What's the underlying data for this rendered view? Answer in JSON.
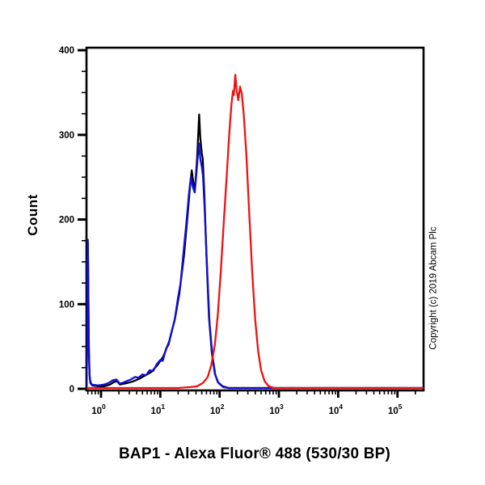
{
  "page": {
    "background": "#ffffff"
  },
  "chart_data": {
    "type": "line",
    "subtype": "flow-cytometry-histogram",
    "title": "BAP1 - Alexa Fluor® 488 (530/30 BP)",
    "xlabel": "BAP1 - Alexa Fluor® 488 (530/30 BP)",
    "ylabel": "Count",
    "copyright": "Copyright (c) 2019 Abcam Plc",
    "grid": false,
    "legend_position": "none",
    "x_scale": "log",
    "x_range_decades": [
      -0.245,
      5.44
    ],
    "x_major_tick_exponents": [
      0,
      1,
      2,
      3,
      4,
      5
    ],
    "x_tick_base": "10",
    "ylim": [
      0,
      403
    ],
    "y_major_ticks": [
      0,
      100,
      200,
      300,
      400
    ],
    "y_minor_step": 25,
    "axis_color": "#000000",
    "series": [
      {
        "name": "black-curve",
        "color": "#000000",
        "points_decade_count": [
          [
            -0.245,
            3
          ],
          [
            -0.235,
            40
          ],
          [
            -0.228,
            120
          ],
          [
            -0.222,
            172
          ],
          [
            -0.215,
            130
          ],
          [
            -0.205,
            55
          ],
          [
            -0.195,
            18
          ],
          [
            -0.18,
            7
          ],
          [
            -0.15,
            4
          ],
          [
            -0.05,
            3
          ],
          [
            0.05,
            3
          ],
          [
            0.15,
            5
          ],
          [
            0.22,
            8
          ],
          [
            0.27,
            9
          ],
          [
            0.32,
            5
          ],
          [
            0.38,
            6
          ],
          [
            0.45,
            7
          ],
          [
            0.55,
            9
          ],
          [
            0.65,
            12
          ],
          [
            0.75,
            16
          ],
          [
            0.85,
            20
          ],
          [
            0.95,
            28
          ],
          [
            1.05,
            38
          ],
          [
            1.15,
            56
          ],
          [
            1.25,
            84
          ],
          [
            1.32,
            112
          ],
          [
            1.4,
            158
          ],
          [
            1.46,
            205
          ],
          [
            1.5,
            238
          ],
          [
            1.53,
            258
          ],
          [
            1.56,
            242
          ],
          [
            1.585,
            236
          ],
          [
            1.62,
            272
          ],
          [
            1.655,
            324
          ],
          [
            1.675,
            296
          ],
          [
            1.7,
            278
          ],
          [
            1.715,
            272
          ],
          [
            1.74,
            235
          ],
          [
            1.78,
            155
          ],
          [
            1.82,
            85
          ],
          [
            1.87,
            42
          ],
          [
            1.92,
            18
          ],
          [
            1.97,
            8
          ],
          [
            2.05,
            3
          ],
          [
            2.15,
            1
          ],
          [
            2.4,
            1
          ],
          [
            5.44,
            1
          ]
        ]
      },
      {
        "name": "blue-curve",
        "color": "#0f0fd6",
        "points_decade_count": [
          [
            -0.245,
            3
          ],
          [
            -0.235,
            60
          ],
          [
            -0.228,
            140
          ],
          [
            -0.222,
            176
          ],
          [
            -0.215,
            120
          ],
          [
            -0.205,
            45
          ],
          [
            -0.19,
            12
          ],
          [
            -0.16,
            5
          ],
          [
            -0.05,
            4
          ],
          [
            0.05,
            5
          ],
          [
            0.13,
            7
          ],
          [
            0.2,
            10
          ],
          [
            0.26,
            11
          ],
          [
            0.32,
            6
          ],
          [
            0.4,
            8
          ],
          [
            0.5,
            11
          ],
          [
            0.58,
            14
          ],
          [
            0.63,
            13
          ],
          [
            0.7,
            17
          ],
          [
            0.76,
            16
          ],
          [
            0.82,
            22
          ],
          [
            0.88,
            21
          ],
          [
            0.94,
            29
          ],
          [
            1.0,
            34
          ],
          [
            1.04,
            33
          ],
          [
            1.1,
            48
          ],
          [
            1.14,
            52
          ],
          [
            1.2,
            70
          ],
          [
            1.24,
            80
          ],
          [
            1.3,
            108
          ],
          [
            1.34,
            124
          ],
          [
            1.4,
            168
          ],
          [
            1.44,
            196
          ],
          [
            1.48,
            228
          ],
          [
            1.515,
            250
          ],
          [
            1.55,
            238
          ],
          [
            1.58,
            232
          ],
          [
            1.62,
            264
          ],
          [
            1.65,
            290
          ],
          [
            1.675,
            272
          ],
          [
            1.7,
            262
          ],
          [
            1.72,
            252
          ],
          [
            1.75,
            210
          ],
          [
            1.79,
            140
          ],
          [
            1.83,
            78
          ],
          [
            1.88,
            38
          ],
          [
            1.93,
            16
          ],
          [
            1.98,
            7
          ],
          [
            2.06,
            2
          ],
          [
            2.15,
            1
          ],
          [
            5.44,
            1
          ]
        ]
      },
      {
        "name": "red-curve",
        "color": "#ee1111",
        "points_decade_count": [
          [
            -0.245,
            1
          ],
          [
            1.3,
            1
          ],
          [
            1.5,
            2
          ],
          [
            1.62,
            3
          ],
          [
            1.72,
            7
          ],
          [
            1.8,
            14
          ],
          [
            1.86,
            28
          ],
          [
            1.92,
            52
          ],
          [
            1.97,
            88
          ],
          [
            2.02,
            138
          ],
          [
            2.07,
            196
          ],
          [
            2.12,
            252
          ],
          [
            2.16,
            298
          ],
          [
            2.2,
            336
          ],
          [
            2.225,
            352
          ],
          [
            2.24,
            347
          ],
          [
            2.265,
            371
          ],
          [
            2.29,
            352
          ],
          [
            2.315,
            341
          ],
          [
            2.345,
            357
          ],
          [
            2.375,
            348
          ],
          [
            2.41,
            322
          ],
          [
            2.45,
            278
          ],
          [
            2.5,
            208
          ],
          [
            2.55,
            138
          ],
          [
            2.6,
            82
          ],
          [
            2.65,
            44
          ],
          [
            2.7,
            22
          ],
          [
            2.76,
            9
          ],
          [
            2.83,
            3
          ],
          [
            2.92,
            1
          ],
          [
            5.44,
            1
          ]
        ]
      }
    ]
  }
}
